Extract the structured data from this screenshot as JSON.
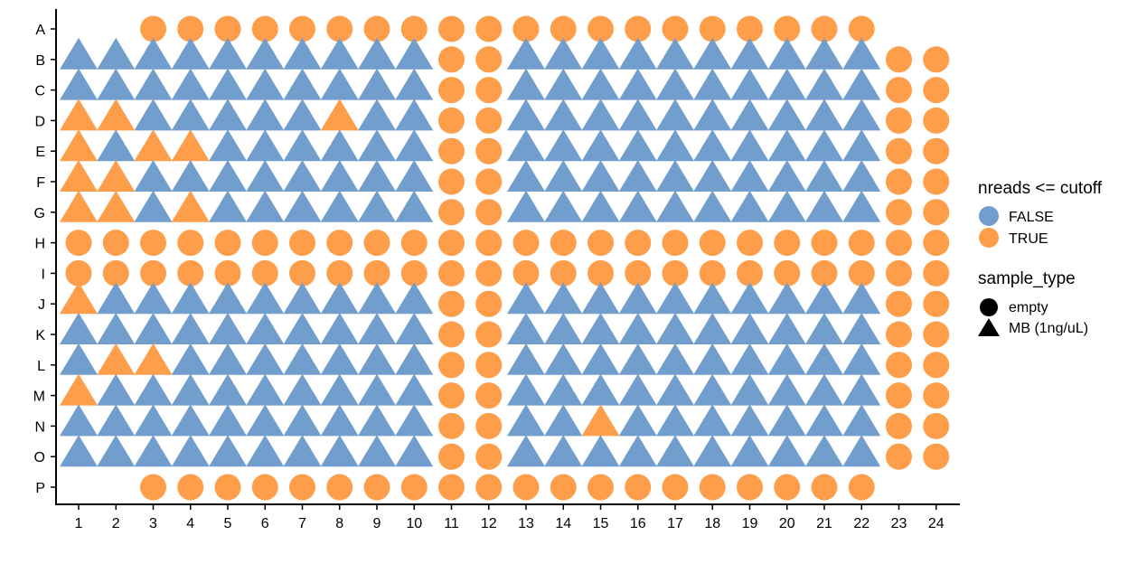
{
  "chart_data": {
    "type": "scatter",
    "title": "",
    "xlabel": "",
    "ylabel": "",
    "x_categories": [
      "1",
      "2",
      "3",
      "4",
      "5",
      "6",
      "7",
      "8",
      "9",
      "10",
      "11",
      "12",
      "13",
      "14",
      "15",
      "16",
      "17",
      "18",
      "19",
      "20",
      "21",
      "22",
      "23",
      "24"
    ],
    "y_categories": [
      "A",
      "B",
      "C",
      "D",
      "E",
      "F",
      "G",
      "H",
      "I",
      "J",
      "K",
      "L",
      "M",
      "N",
      "O",
      "P"
    ],
    "colors": {
      "FALSE": "#729ECE",
      "TRUE": "#FF9E4A"
    },
    "shape_key": {
      "C": "empty (circle)",
      "T": "MB (1ng/uL) (triangle)",
      ".": "no point"
    },
    "color_key": {
      "o": "TRUE (orange)",
      "b": "FALSE (blue)"
    },
    "grid_encoding": "each row string lists wells 1-24; two chars per well: shape + color",
    "grid": {
      "A": "....CoCoCoCoCoCoCoCoCoCoCoCoCoCoCoCoCoCoCoCo....",
      "B": "TbTbTbTbTbTbTbTbTbTbCoCoTbTbTbTbTbTbTbTbTbTbCoCo",
      "C": "TbTbTbTbTbTbTbTbTbTbCoCoTbTbTbTbTbTbTbTbTbTbCoCo",
      "D": "ToToTbTbTbTbTbToTbTbCoCoTbTbTbTbTbTbTbTbTbTbCoCo",
      "E": "ToTbToToTbTbTbTbTbTbCoCoTbTbTbTbTbTbTbTbTbTbCoCo",
      "F": "ToToTbTbTbTbTbTbTbTbCoCoTbTbTbTbTbTbTbTbTbTbCoCo",
      "G": "ToToTbToTbTbTbTbTbTbCoCoTbTbTbTbTbTbTbTbTbTbCoCo",
      "H": "CoCoCoCoCoCoCoCoCoCoCoCoCoCoCoCoCoCoCoCoCoCoCoCo",
      "I": "CoCoCoCoCoCoCoCoCoCoCoCoCoCoCoCoCoCoCoCoCoCoCoCo",
      "J": "ToTbTbTbTbTbTbTbTbTbCoCoTbTbTbTbTbTbTbTbTbTbCoCo",
      "K": "TbTbTbTbTbTbTbTbTbTbCoCoTbTbTbTbTbTbTbTbTbTbCoCo",
      "L": "TbToToTbTbTbTbTbTbTbCoCoTbTbTbTbTbTbTbTbTbTbCoCo",
      "M": "ToTbTbTbTbTbTbTbTbTbCoCoTbTbTbTbTbTbTbTbTbTbCoCo",
      "N": "TbTbTbTbTbTbTbTbTbTbCoCoTbTbToTbTbTbTbTbTbTbCoCo",
      "O": "TbTbTbTbTbTbTbTbTbTbCoCoTbTbTbTbTbTbTbTbTbTbCoCo",
      "P": "....CoCoCoCoCoCoCoCoCoCoCoCoCoCoCoCoCoCoCoCo...."
    },
    "legend": {
      "placement": "right",
      "color_title": "nreads <= cutoff",
      "color_entries": [
        {
          "label": "FALSE",
          "color": "#729ECE"
        },
        {
          "label": "TRUE",
          "color": "#FF9E4A"
        }
      ],
      "shape_title": "sample_type",
      "shape_entries": [
        {
          "label": "empty",
          "shape": "circle"
        },
        {
          "label": "MB (1ng/uL)",
          "shape": "triangle"
        }
      ]
    },
    "grid_lines": false
  }
}
